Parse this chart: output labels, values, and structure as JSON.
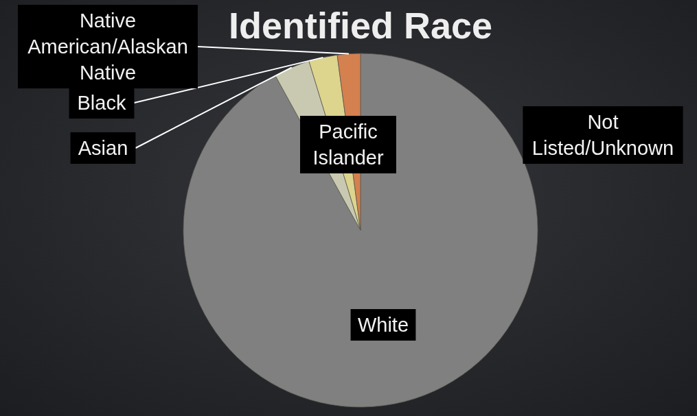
{
  "chart_data": {
    "type": "pie",
    "title": "Identified Race",
    "categories": [
      "White",
      "Asian",
      "Black",
      "Native American/Alaskan Native",
      "Pacific Islander",
      "Not Listed/Unknown"
    ],
    "values": [
      92.0,
      3.3,
      2.6,
      2.1,
      0,
      0
    ],
    "colors": [
      "#808080",
      "#c9c9b1",
      "#ddd48e",
      "#d4804f",
      null,
      null
    ]
  }
}
